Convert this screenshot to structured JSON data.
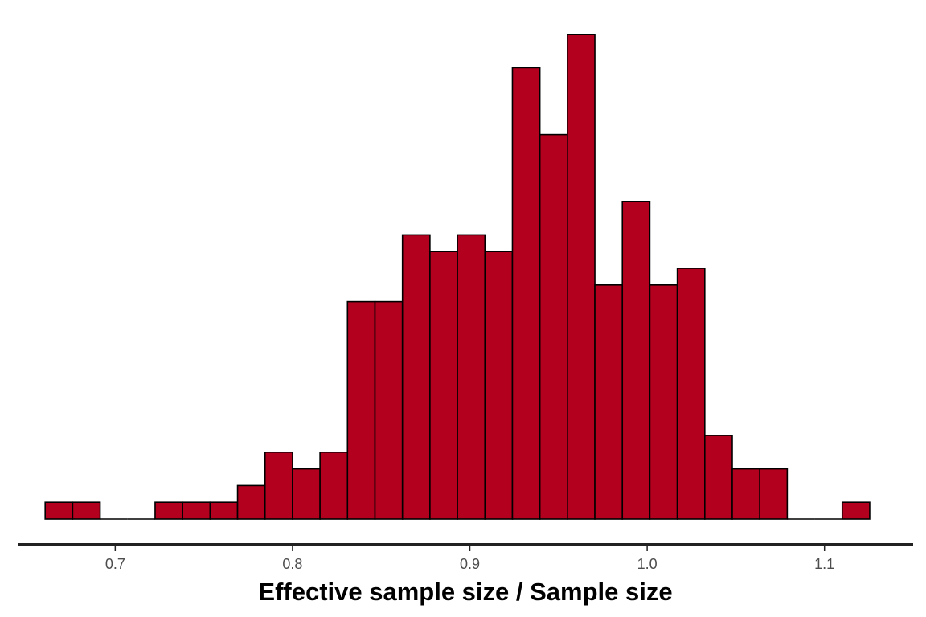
{
  "chart_data": {
    "type": "histogram",
    "title": "",
    "xlabel": "Effective sample size / Sample size",
    "ylabel": "",
    "xlim": [
      0.645,
      1.15
    ],
    "ylim": [
      0,
      30
    ],
    "x_ticks": [
      {
        "value": 0.7,
        "label": "0.7"
      },
      {
        "value": 0.8,
        "label": "0.8"
      },
      {
        "value": 0.9,
        "label": "0.9"
      },
      {
        "value": 1.0,
        "label": "1.0"
      },
      {
        "value": 1.1,
        "label": "1.1"
      }
    ],
    "bin_start": 0.6605,
    "bin_width": 0.0155,
    "counts": [
      1,
      1,
      0,
      0,
      1,
      1,
      1,
      2,
      4,
      3,
      4,
      13,
      13,
      17,
      16,
      17,
      16,
      27,
      23,
      29,
      14,
      19,
      14,
      15,
      5,
      3,
      3,
      0,
      0,
      1
    ],
    "grid": false,
    "legend": "none",
    "colors": {
      "bar_fill": "#b2001e",
      "bar_stroke": "#000000",
      "axis_line": "#222222"
    }
  }
}
